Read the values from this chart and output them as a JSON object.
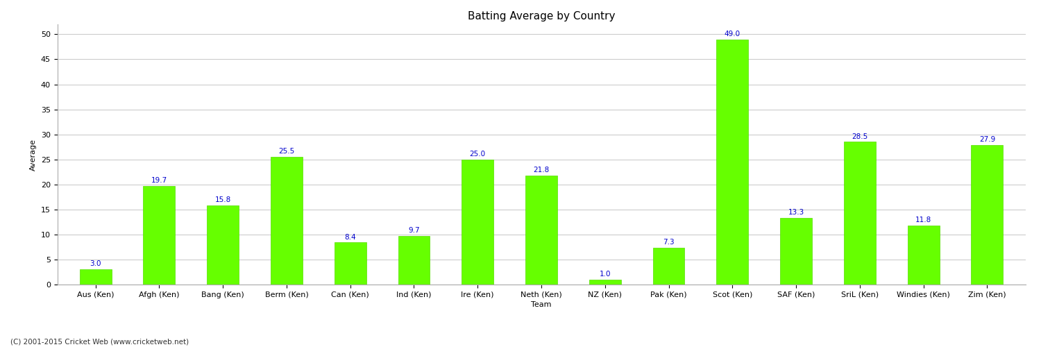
{
  "categories": [
    "Aus (Ken)",
    "Afgh (Ken)",
    "Bang (Ken)",
    "Berm (Ken)",
    "Can (Ken)",
    "Ind (Ken)",
    "Ire (Ken)",
    "Neth (Ken)",
    "NZ (Ken)",
    "Pak (Ken)",
    "Scot (Ken)",
    "SAF (Ken)",
    "SriL (Ken)",
    "Windies (Ken)",
    "Zim (Ken)"
  ],
  "values": [
    3.0,
    19.7,
    15.8,
    25.5,
    8.4,
    9.7,
    25.0,
    21.8,
    1.0,
    7.3,
    49.0,
    13.3,
    28.5,
    11.8,
    27.9
  ],
  "bar_color": "#66ff00",
  "bar_edge_color": "#55dd00",
  "label_color": "#0000cc",
  "title": "Batting Average by Country",
  "ylabel": "Average",
  "xlabel": "Team",
  "ylim": [
    0,
    52
  ],
  "yticks": [
    0,
    5,
    10,
    15,
    20,
    25,
    30,
    35,
    40,
    45,
    50
  ],
  "background_color": "#ffffff",
  "grid_color": "#cccccc",
  "footer": "(C) 2001-2015 Cricket Web (www.cricketweb.net)",
  "title_fontsize": 11,
  "label_fontsize": 7.5,
  "axis_fontsize": 8,
  "tick_fontsize": 8
}
